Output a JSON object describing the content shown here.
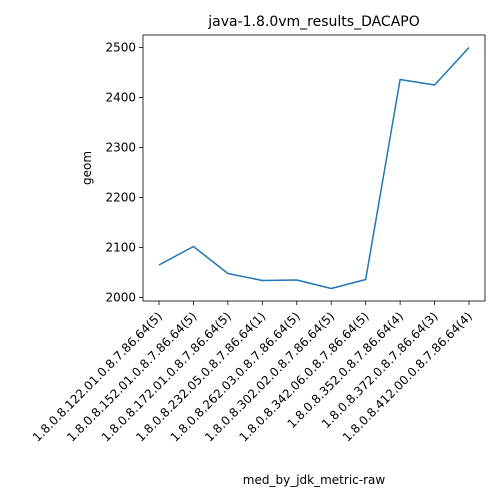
{
  "chart_data": {
    "type": "line",
    "title": "java-1.8.0vm_results_DACAPO",
    "xlabel": "med_by_jdk_metric-raw",
    "ylabel": "geom",
    "categories": [
      "1.8.0.8.122.01.0.8.7.86.64(5)",
      "1.8.0.8.152.01.0.8.7.86.64(5)",
      "1.8.0.8.172.01.0.8.7.86.64(5)",
      "1.8.0.8.232.05.0.8.7.86.64(1)",
      "1.8.0.8.262.03.0.8.7.86.64(5)",
      "1.8.0.8.302.02.0.8.7.86.64(5)",
      "1.8.0.8.342.06.0.8.7.86.64(5)",
      "1.8.0.8.352.0.8.7.86.64(4)",
      "1.8.0.8.372.0.8.7.86.64(3)",
      "1.8.0.8.412.00.0.8.7.86.64(4)"
    ],
    "series": [
      {
        "values": [
          2065,
          2102,
          2048,
          2034,
          2035,
          2018,
          2036,
          2436,
          2425,
          2500
        ]
      }
    ],
    "yticks": [
      2000,
      2100,
      2200,
      2300,
      2400,
      2500
    ],
    "ylim": [
      1993,
      2525
    ],
    "grid": false,
    "line_color": "#1f77b4"
  }
}
